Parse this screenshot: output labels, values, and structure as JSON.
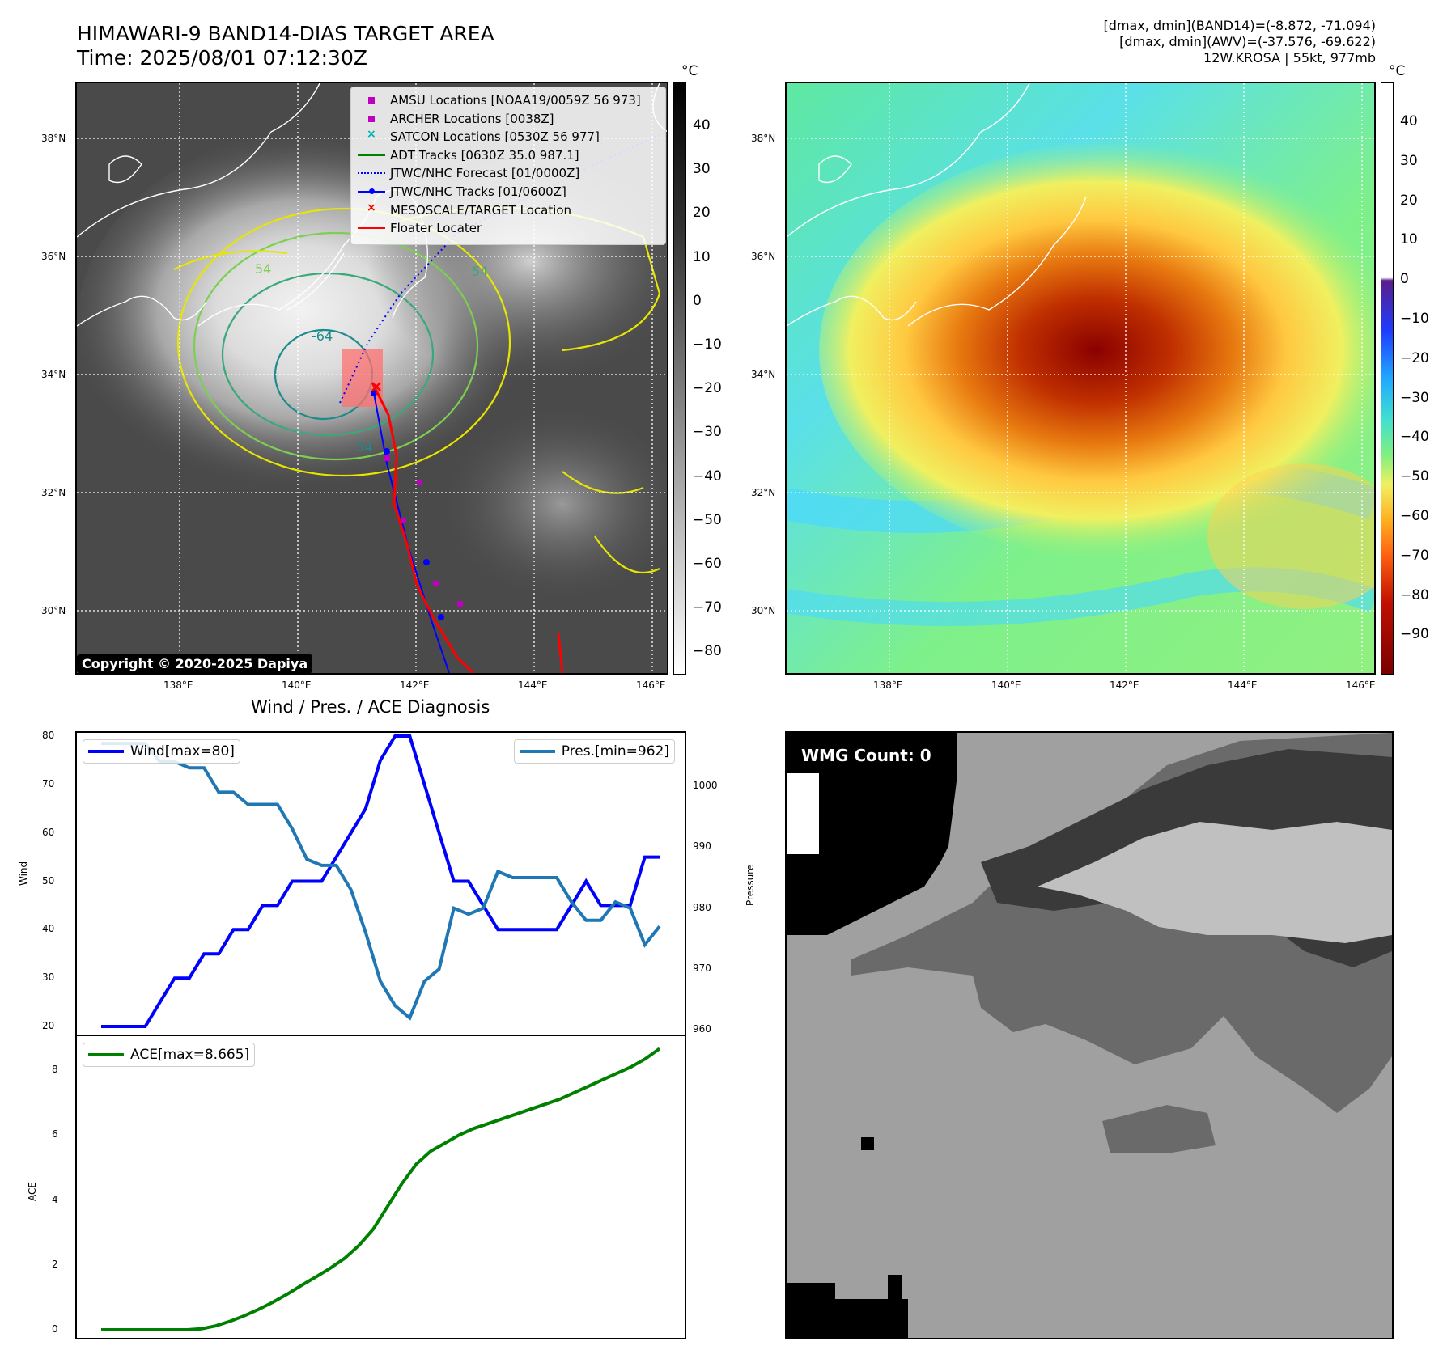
{
  "header": {
    "title_line1": "HIMAWARI-9 BAND14-DIAS TARGET AREA",
    "title_line2": "Time: 2025/08/01 07:12:30Z",
    "info_line1": "[dmax, dmin](BAND14)=(-8.872, -71.094)",
    "info_line2": "[dmax, dmin](AWV)=(-37.576, -69.622)",
    "info_line3": "12W.KROSA | 55kt, 977mb"
  },
  "map": {
    "lon_ticks": [
      "138°E",
      "140°E",
      "142°E",
      "144°E",
      "146°E"
    ],
    "lat_ticks": [
      "38°N",
      "36°N",
      "34°N",
      "32°N",
      "30°N"
    ],
    "contour_labels": [
      "-64",
      "54",
      "54",
      "54"
    ],
    "copyright": "Copyright © 2020-2025 Dapiya",
    "colorbar_unit": "°C",
    "gray_colorbar_ticks": [
      "40",
      "30",
      "20",
      "10",
      "0",
      "−10",
      "−20",
      "−30",
      "−40",
      "−50",
      "−60",
      "−70",
      "−80"
    ],
    "color_colorbar_ticks": [
      "40",
      "30",
      "20",
      "10",
      "0",
      "−10",
      "−20",
      "−30",
      "−40",
      "−50",
      "−60",
      "−70",
      "−80",
      "−90"
    ],
    "legend": [
      {
        "label": "AMSU Locations [NOAA19/0059Z 56 973]",
        "color": "#c000c0",
        "marker": "square"
      },
      {
        "label": "ARCHER Locations [0038Z]",
        "color": "#c000c0",
        "marker": "square"
      },
      {
        "label": "SATCON Locations [0530Z 56 977]",
        "color": "#00b0b0",
        "marker": "x"
      },
      {
        "label": "ADT Tracks [0630Z 35.0 987.1]",
        "color": "#008000",
        "marker": "line"
      },
      {
        "label": "JTWC/NHC Forecast [01/0000Z]",
        "color": "#0000ff",
        "marker": "dotted"
      },
      {
        "label": "JTWC/NHC Tracks [01/0600Z]",
        "color": "#0000ff",
        "marker": "line-dot"
      },
      {
        "label": "MESOSCALE/TARGET Location",
        "color": "#ff0000",
        "marker": "x"
      },
      {
        "label": "Floater Locater",
        "color": "#ff0000",
        "marker": "line"
      }
    ]
  },
  "wmg": {
    "label": "WMG Count: 0"
  },
  "chart_data": [
    {
      "type": "line",
      "title": "Wind / Pres. / ACE Diagnosis",
      "ylabel": "Wind",
      "y2label": "Pressure",
      "ylim": [
        18,
        81
      ],
      "y2lim": [
        959,
        1009
      ],
      "yticks": [
        20,
        30,
        40,
        50,
        60,
        70,
        80
      ],
      "y2ticks": [
        960,
        970,
        980,
        990,
        1000
      ],
      "series": [
        {
          "name": "Wind[max=80]",
          "axis": "left",
          "color": "#0000ff",
          "values": [
            20,
            20,
            20,
            20,
            25,
            30,
            30,
            35,
            35,
            40,
            40,
            45,
            45,
            50,
            50,
            50,
            55,
            60,
            65,
            75,
            80,
            80,
            70,
            60,
            50,
            50,
            45,
            40,
            40,
            40,
            40,
            40,
            45,
            50,
            45,
            45,
            45,
            55,
            55
          ]
        },
        {
          "name": "Pres.[min=962]",
          "axis": "right",
          "color": "#1f77b4",
          "values": [
            1007,
            1007,
            1007,
            1007,
            1004,
            1004,
            1003,
            1003,
            999,
            999,
            997,
            997,
            997,
            993,
            988,
            987,
            987,
            983,
            976,
            968,
            964,
            962,
            968,
            970,
            980,
            979,
            980,
            986,
            985,
            985,
            985,
            985,
            981,
            978,
            978,
            981,
            980,
            974,
            977
          ]
        }
      ]
    },
    {
      "type": "line",
      "ylabel": "ACE",
      "ylim": [
        -0.3,
        9.1
      ],
      "yticks": [
        0,
        2,
        4,
        6,
        8
      ],
      "series": [
        {
          "name": "ACE[max=8.665]",
          "color": "#008000",
          "values": [
            0,
            0,
            0,
            0,
            0,
            0,
            0,
            0.03,
            0.12,
            0.26,
            0.43,
            0.63,
            0.85,
            1.1,
            1.37,
            1.63,
            1.9,
            2.2,
            2.6,
            3.1,
            3.8,
            4.5,
            5.1,
            5.5,
            5.75,
            6.0,
            6.2,
            6.35,
            6.5,
            6.65,
            6.8,
            6.95,
            7.1,
            7.3,
            7.5,
            7.7,
            7.9,
            8.1,
            8.35,
            8.665
          ]
        }
      ]
    }
  ]
}
